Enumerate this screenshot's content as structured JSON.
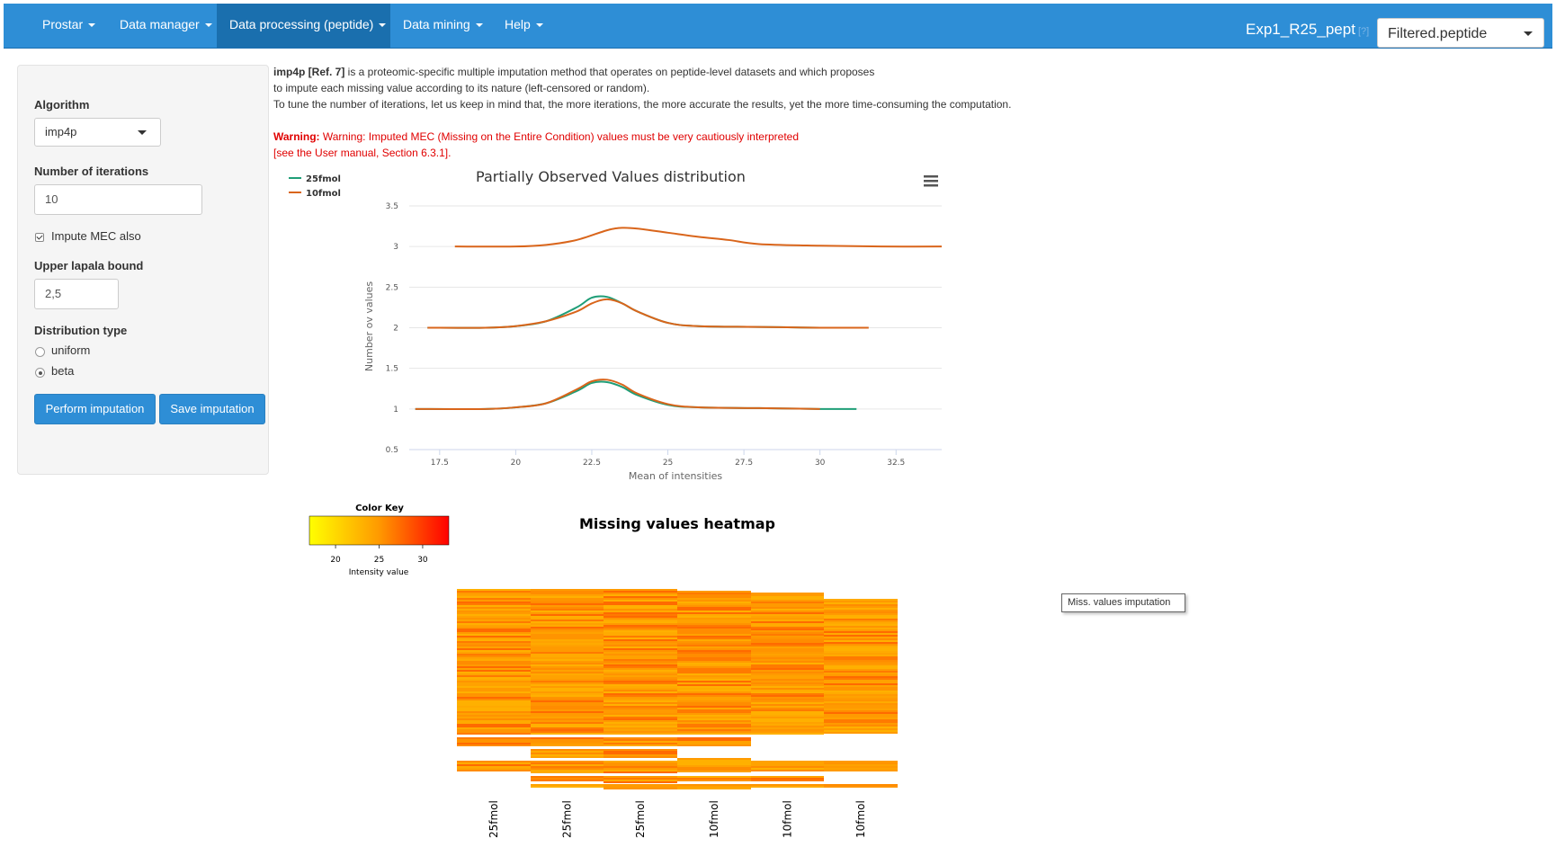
{
  "navbar": {
    "items": [
      {
        "label": "Prostar"
      },
      {
        "label": "Data manager"
      },
      {
        "label": "Data processing (peptide)"
      },
      {
        "label": "Data mining"
      },
      {
        "label": "Help"
      }
    ],
    "dataset_name": "Exp1_R25_pept",
    "help_mark": "[?]",
    "dataset_select": "Filtered.peptide",
    "colors": {
      "bar": "#2e8ed6",
      "active": "#1a6fae"
    }
  },
  "sidebar": {
    "algorithm_label": "Algorithm",
    "algorithm_value": "imp4p",
    "iterations_label": "Number of iterations",
    "iterations_value": "10",
    "impute_mec_label": "Impute MEC also",
    "impute_mec_checked": true,
    "lapala_label": "Upper lapala bound",
    "lapala_value": "2,5",
    "dist_label": "Distribution type",
    "dist_options": [
      "uniform",
      "beta"
    ],
    "dist_selected": "beta",
    "perform_button": "Perform imputation",
    "save_button": "Save imputation"
  },
  "description": {
    "title": "imp4p [Ref. 7]",
    "line1": " is a proteomic-specific multiple imputation method that operates on peptide-level datasets and which proposes",
    "line2": "to impute each missing value according to its nature (left-censored or random).",
    "line3": "To tune the number of iterations, let us keep in mind that, the more iterations, the more accurate the results, yet the more time-consuming the computation."
  },
  "warning": {
    "prefix": "Warning:",
    "line1": " Warning: Imputed MEC (Missing on the Entire Condition) values must be very cautiously interpreted",
    "line2": "[see the User manual, Section 6.3.1]."
  },
  "tooltip": "Miss. values imputation",
  "chart_data": [
    {
      "type": "line",
      "title": "Partially Observed Values distribution",
      "xlabel": "Mean of intensities",
      "ylabel": "Number ov values",
      "xlim": [
        16.5,
        34
      ],
      "ylim": [
        0.5,
        3.5
      ],
      "xticks": [
        17.5,
        20,
        22.5,
        25,
        27.5,
        30,
        32.5
      ],
      "yticks": [
        0.5,
        1,
        1.5,
        2,
        2.5,
        3,
        3.5
      ],
      "grid": true,
      "legend": "top-left",
      "series": [
        {
          "name": "25fmol",
          "color": "#1f9e77",
          "x": [
            16.7,
            19,
            20,
            21,
            22,
            22.5,
            23,
            23.5,
            24,
            25,
            26,
            28,
            30,
            31.2
          ],
          "y": [
            1.0,
            1.0,
            1.02,
            1.07,
            1.22,
            1.32,
            1.33,
            1.27,
            1.17,
            1.05,
            1.02,
            1.01,
            1.0,
            1.0
          ],
          "offset_y": 0,
          "x2": [
            17.1,
            19,
            20,
            21,
            22,
            22.5,
            23,
            23.5,
            24,
            25,
            26,
            28,
            30
          ],
          "y2": [
            2.0,
            2.0,
            2.02,
            2.08,
            2.25,
            2.37,
            2.38,
            2.3,
            2.2,
            2.06,
            2.02,
            2.01,
            2.0
          ]
        },
        {
          "name": "10fmol",
          "color": "#d9651b",
          "x": [
            16.7,
            19,
            20,
            21,
            22,
            22.5,
            23,
            23.5,
            24,
            25,
            26,
            28,
            30
          ],
          "y": [
            1.0,
            1.0,
            1.02,
            1.07,
            1.24,
            1.34,
            1.36,
            1.3,
            1.19,
            1.06,
            1.02,
            1.01,
            1.0
          ],
          "x2": [
            17.1,
            19,
            20,
            21,
            22,
            22.5,
            23,
            23.5,
            24,
            25,
            26,
            28,
            30,
            31.6
          ],
          "y2": [
            2.0,
            2.0,
            2.02,
            2.08,
            2.2,
            2.3,
            2.35,
            2.3,
            2.2,
            2.06,
            2.02,
            2.01,
            2.0,
            2.0
          ],
          "x3": [
            18,
            20,
            21,
            22,
            23,
            23.5,
            24,
            25,
            26,
            27,
            28,
            30,
            32,
            34
          ],
          "y3": [
            3.0,
            3.0,
            3.02,
            3.08,
            3.2,
            3.23,
            3.22,
            3.17,
            3.12,
            3.08,
            3.03,
            3.01,
            3.0,
            3.0
          ]
        }
      ]
    },
    {
      "type": "heatmap",
      "title": "Missing values heatmap",
      "color_key_title": "Color Key",
      "color_key_label": "Intensity value",
      "color_key_ticks": [
        20,
        25,
        30
      ],
      "color_key_range": [
        17,
        33
      ],
      "columns": [
        "25fmol",
        "25fmol",
        "25fmol",
        "10fmol",
        "10fmol",
        "10fmol"
      ],
      "colors": {
        "low": "#ffff00",
        "high": "#ff0000"
      }
    }
  ]
}
